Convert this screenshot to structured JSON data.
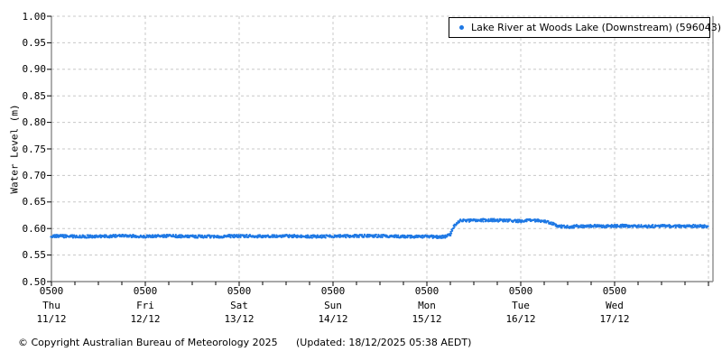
{
  "chart_data": {
    "type": "scatter",
    "title": "",
    "ylabel": "Water Level (m)",
    "ylim": [
      0.5,
      1.0
    ],
    "ytick_step": 0.05,
    "y_ticks": [
      "1.00",
      "0.95",
      "0.90",
      "0.85",
      "0.80",
      "0.75",
      "0.70",
      "0.65",
      "0.60",
      "0.55",
      "0.50"
    ],
    "grid": "dashed",
    "legend_position": "top-right",
    "x_tick_interval_hours": 6,
    "x_gridline_interval_hours": 24,
    "x_span_hours": 169.2,
    "x_ticklabels": [
      {
        "time": "0500",
        "day": "Thu",
        "date": "11/12"
      },
      {
        "time": "0500",
        "day": "Fri",
        "date": "12/12"
      },
      {
        "time": "0500",
        "day": "Sat",
        "date": "13/12"
      },
      {
        "time": "0500",
        "day": "Sun",
        "date": "14/12"
      },
      {
        "time": "0500",
        "day": "Mon",
        "date": "15/12"
      },
      {
        "time": "0500",
        "day": "Tue",
        "date": "16/12"
      },
      {
        "time": "0500",
        "day": "Wed",
        "date": "17/12"
      }
    ],
    "series": [
      {
        "name": "Lake River at Woods Lake (Downstream) (596043)",
        "marker": "dot",
        "color": "#1E78E4",
        "points_hours_level": [
          [
            0,
            0.586
          ],
          [
            6,
            0.585
          ],
          [
            12,
            0.585
          ],
          [
            18,
            0.586
          ],
          [
            24,
            0.585
          ],
          [
            30,
            0.586
          ],
          [
            36,
            0.585
          ],
          [
            42,
            0.585
          ],
          [
            48,
            0.586
          ],
          [
            54,
            0.585
          ],
          [
            60,
            0.586
          ],
          [
            66,
            0.585
          ],
          [
            72,
            0.585
          ],
          [
            78,
            0.586
          ],
          [
            84,
            0.586
          ],
          [
            90,
            0.585
          ],
          [
            96,
            0.585
          ],
          [
            99,
            0.584
          ],
          [
            101,
            0.585
          ],
          [
            102,
            0.588
          ],
          [
            103,
            0.605
          ],
          [
            104,
            0.613
          ],
          [
            105,
            0.615
          ],
          [
            108,
            0.615
          ],
          [
            112,
            0.616
          ],
          [
            116,
            0.615
          ],
          [
            120,
            0.614
          ],
          [
            122,
            0.616
          ],
          [
            124,
            0.615
          ],
          [
            126,
            0.614
          ],
          [
            127,
            0.612
          ],
          [
            128,
            0.609
          ],
          [
            129,
            0.606
          ],
          [
            130,
            0.604
          ],
          [
            132,
            0.603
          ],
          [
            134,
            0.604
          ],
          [
            138,
            0.605
          ],
          [
            142,
            0.604
          ],
          [
            144,
            0.605
          ],
          [
            148,
            0.605
          ],
          [
            152,
            0.604
          ],
          [
            156,
            0.605
          ],
          [
            160,
            0.604
          ],
          [
            164,
            0.605
          ],
          [
            168,
            0.604
          ]
        ]
      }
    ]
  },
  "legend": {
    "label": "Lake River at Woods Lake (Downstream) (596043)"
  },
  "footer": {
    "copyright": "© Copyright Australian Bureau of Meteorology 2025",
    "updated": "(Updated: 18/12/2025 05:38 AEDT)"
  },
  "colors": {
    "series": "#1E78E4",
    "grid": "#C8C8C8",
    "frame": "#8C8C8C",
    "tick": "#000000",
    "text": "#000000",
    "background": "#FFFFFF"
  }
}
